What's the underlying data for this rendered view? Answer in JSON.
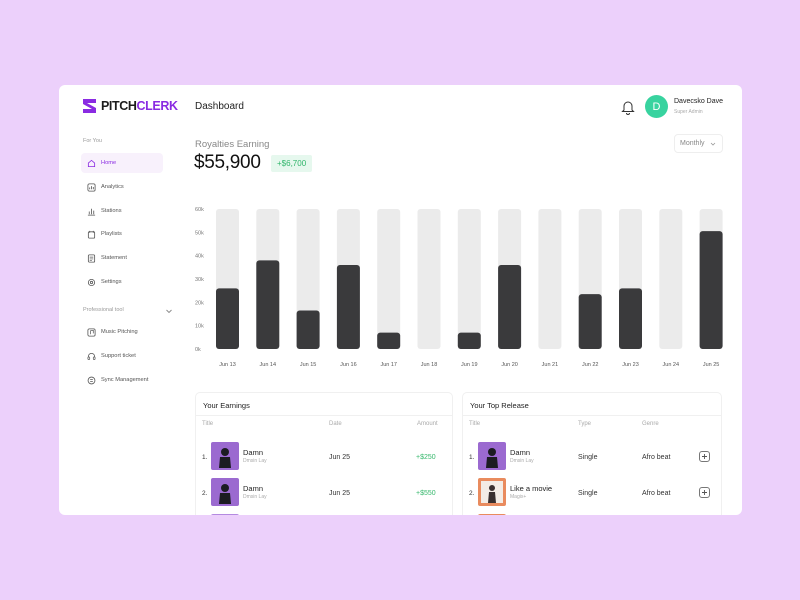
{
  "brand": {
    "name_part1": "PITCH",
    "name_part2": "CLERK",
    "accent": "#8a2be2"
  },
  "header": {
    "title": "Dashboard",
    "user_initial": "D",
    "user_name": "Davecsko Dave",
    "user_role": "Super Admin",
    "avatar_color": "#38d39f"
  },
  "sidebar": {
    "section1_label": "For You",
    "items": [
      {
        "label": "Home",
        "icon": "home-icon",
        "active": true
      },
      {
        "label": "Analytics",
        "icon": "analytics-icon"
      },
      {
        "label": "Stations",
        "icon": "stations-icon"
      },
      {
        "label": "Playlists",
        "icon": "playlists-icon"
      },
      {
        "label": "Statement",
        "icon": "statement-icon"
      },
      {
        "label": "Settings",
        "icon": "settings-icon"
      }
    ],
    "section2_label": "Professional tool",
    "items2": [
      {
        "label": "Music Pitching",
        "icon": "music-pitching-icon"
      },
      {
        "label": "Support ticket",
        "icon": "headset-icon"
      },
      {
        "label": "Sync Management",
        "icon": "sync-icon"
      }
    ]
  },
  "royalties": {
    "label": "Royalties Earning",
    "amount": "$55,900",
    "delta": "+$6,700",
    "period": "Monthly"
  },
  "chart_data": {
    "type": "bar",
    "categories": [
      "Jun 13",
      "Jun 14",
      "Jun 15",
      "Jun 16",
      "Jun 17",
      "Jun 18",
      "Jun 19",
      "Jun 20",
      "Jun 21",
      "Jun 22",
      "Jun 23",
      "Jun 24",
      "Jun 25"
    ],
    "values": [
      26000,
      38000,
      16500,
      36000,
      7000,
      0,
      7000,
      36000,
      0,
      23500,
      26000,
      0,
      50500
    ],
    "max_value": 60000,
    "ylim": [
      0,
      60000
    ],
    "yticks": [
      "0k",
      "10k",
      "20k",
      "30k",
      "40k",
      "50k",
      "60k"
    ],
    "bar_color": "#3a3a3c",
    "track_color": "#ebebeb",
    "grid": false
  },
  "earnings": {
    "title": "Your Earnings",
    "columns": [
      "Title",
      "Date",
      "Amount"
    ],
    "rows": [
      {
        "num": "1.",
        "title": "Damn",
        "artist": "Dmsin Lay",
        "date": "Jun 25",
        "amount": "+$250"
      },
      {
        "num": "2.",
        "title": "Damn",
        "artist": "Dmsin Lay",
        "date": "Jun 25",
        "amount": "+$550"
      }
    ]
  },
  "top_release": {
    "title": "Your Top Release",
    "columns": [
      "Title",
      "Type",
      "Genre"
    ],
    "rows": [
      {
        "num": "1.",
        "title": "Damn",
        "artist": "Dmsin Lay",
        "type": "Single",
        "genre": "Afro beat"
      },
      {
        "num": "2.",
        "title": "Like a movie",
        "artist": "Magix+",
        "type": "Single",
        "genre": "Afro beat"
      }
    ]
  }
}
